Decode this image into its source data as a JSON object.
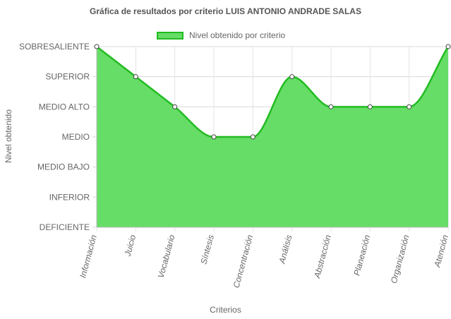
{
  "chart_data": {
    "type": "area",
    "title": "Gráfica de resultados por criterio LUIS ANTONIO ANDRADE SALAS",
    "xlabel": "Criterios",
    "ylabel": "Nivel obtenido",
    "legend": {
      "position": "top",
      "entries": [
        "Nivel obtenido por criterio"
      ]
    },
    "y_levels": [
      "DEFICIENTE",
      "INFERIOR",
      "MEDIO BAJO",
      "MEDIO",
      "MEDIO ALTO",
      "SUPERIOR",
      "SOBRESALIENTE"
    ],
    "ylim": [
      0,
      6
    ],
    "categories": [
      "Información",
      "Juicio",
      "Vocabulario",
      "Síntesis",
      "Concentración",
      "Análisis",
      "Abstracción",
      "Planeación",
      "Organización",
      "Atención"
    ],
    "series": [
      {
        "name": "Nivel obtenido por criterio",
        "values": [
          6,
          5,
          4,
          3,
          3,
          5,
          4,
          4,
          4,
          6
        ],
        "fill_color": "#66dd66",
        "line_color": "#22bb22"
      }
    ],
    "grid": true
  }
}
